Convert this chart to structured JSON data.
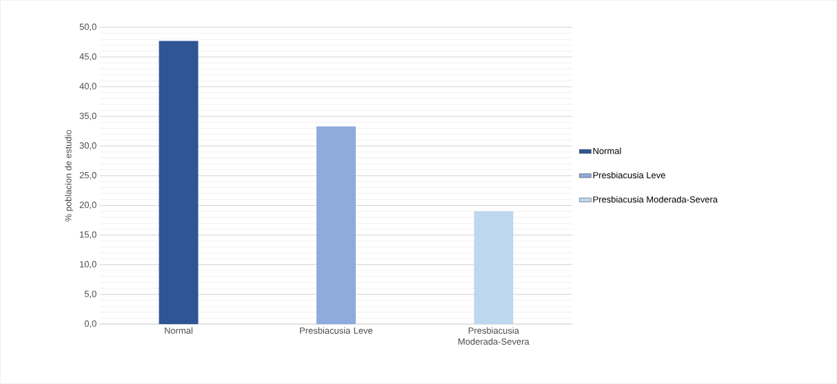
{
  "chart_data": {
    "type": "bar",
    "ylabel": "% poblacion de estudio",
    "categories": [
      "Normal",
      "Presbiacusia Leve",
      "Presbiacusia Moderada-Severa"
    ],
    "series": [
      {
        "name": "Normal",
        "color": "#2f5597",
        "values": [
          47.7,
          null,
          null
        ]
      },
      {
        "name": "Presbiacusia Leve",
        "color": "#8faadc",
        "values": [
          null,
          33.3,
          null
        ]
      },
      {
        "name": "Presbiacusia Moderada-Severa",
        "color": "#bdd7ee",
        "values": [
          null,
          null,
          19.0
        ]
      }
    ],
    "ylim": [
      0,
      50
    ],
    "yticks": [
      {
        "value": 0,
        "label": "0,0"
      },
      {
        "value": 5,
        "label": "5,0"
      },
      {
        "value": 10,
        "label": "10,0"
      },
      {
        "value": 15,
        "label": "15,0"
      },
      {
        "value": 20,
        "label": "20,0"
      },
      {
        "value": 25,
        "label": "25,0"
      },
      {
        "value": 30,
        "label": "30,0"
      },
      {
        "value": 35,
        "label": "35,0"
      },
      {
        "value": 40,
        "label": "40,0"
      },
      {
        "value": 45,
        "label": "45,0"
      },
      {
        "value": 50,
        "label": "50,0"
      }
    ],
    "grid": "y",
    "legend": "right"
  }
}
